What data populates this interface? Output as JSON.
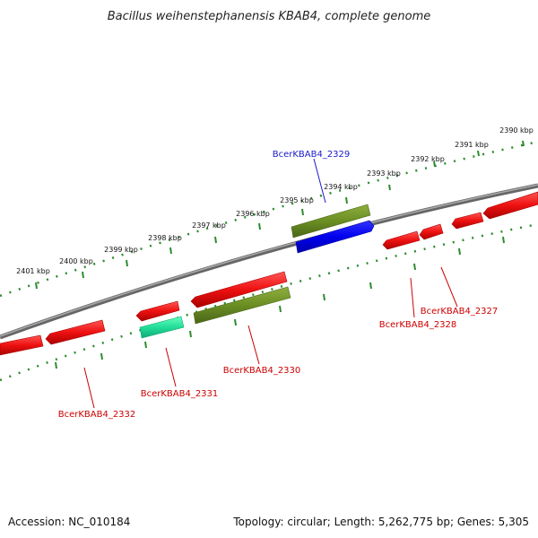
{
  "title": "Bacillus weihenstephanensis KBAB4, complete genome",
  "scale_labels": [
    "2390 kbp",
    "2391 kbp",
    "2392 kbp",
    "2393 kbp",
    "2394 kbp",
    "2395 kbp",
    "2396 kbp",
    "2397 kbp",
    "2398 kbp",
    "2399 kbp",
    "2400 kbp",
    "2401 kbp"
  ],
  "gene_labels": [
    {
      "name": "BcerKBAB4_2329",
      "color": "#1a1acc"
    },
    {
      "name": "BcerKBAB4_2327",
      "color": "#cc0000"
    },
    {
      "name": "BcerKBAB4_2328",
      "color": "#cc0000"
    },
    {
      "name": "BcerKBAB4_2330",
      "color": "#cc0000"
    },
    {
      "name": "BcerKBAB4_2331",
      "color": "#cc0000"
    },
    {
      "name": "BcerKBAB4_2332",
      "color": "#cc0000"
    }
  ],
  "footer": {
    "accession": "Accession: NC_010184",
    "topology": "Topology: circular; Length: 5,262,775 bp; Genes: 5,305"
  },
  "colors": {
    "cds_red": "#ee1111",
    "cds_olive": "#6b8e23",
    "cds_blue": "#0000ee",
    "cds_teal": "#22dd99",
    "backbone": "#888888",
    "ticks": "#2e8b2e"
  }
}
